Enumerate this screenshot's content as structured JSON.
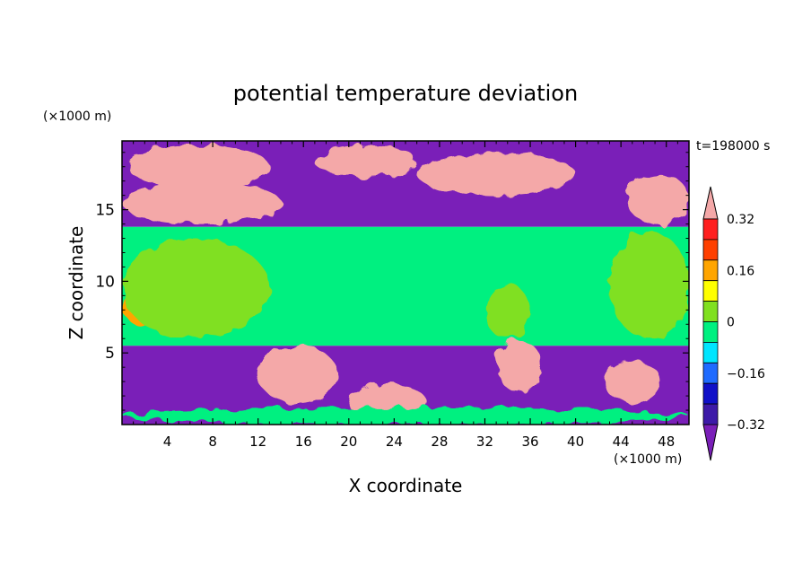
{
  "chart_data": {
    "type": "heatmap",
    "title": "potential temperature deviation",
    "xlabel": "X coordinate",
    "ylabel": "Z coordinate",
    "x_unit": "(×1000 m)",
    "y_unit": "(×1000 m)",
    "time_label": "t=198000 s",
    "xlim": [
      0,
      50
    ],
    "ylim": [
      0,
      19.8
    ],
    "x_ticks": [
      4,
      8,
      12,
      16,
      20,
      24,
      28,
      32,
      36,
      40,
      44,
      48
    ],
    "y_ticks": [
      5,
      10,
      15
    ],
    "colorbar": {
      "labels": [
        "0.32",
        "0.16",
        "0",
        "−0.16",
        "−0.32"
      ],
      "label_values": [
        0.32,
        0.16,
        0,
        -0.16,
        -0.32
      ],
      "levels": [
        -0.4,
        -0.32,
        -0.24,
        -0.16,
        -0.08,
        0,
        0.08,
        0.16,
        0.24,
        0.32,
        0.4
      ],
      "colors": [
        "#7a1fb8",
        "#3d1aa8",
        "#1010c8",
        "#1f6bff",
        "#00e5ff",
        "#00f080",
        "#80e020",
        "#ffff00",
        "#ffa500",
        "#ff4000",
        "#ff1f1f",
        "#f4a8a8"
      ]
    },
    "bands": [
      {
        "z": [
          13.8,
          19.8
        ],
        "value": -0.45,
        "color": "#7a1fb8"
      },
      {
        "z": [
          5.5,
          13.8
        ],
        "value": -0.04,
        "color": "#00f080"
      },
      {
        "z": [
          0,
          5.5
        ],
        "value": -0.45,
        "color": "#7a1fb8"
      }
    ],
    "features": [
      {
        "x": [
          0.5,
          13
        ],
        "z": [
          16.5,
          19.5
        ],
        "value": 0.45
      },
      {
        "x": [
          0,
          14
        ],
        "z": [
          14.0,
          17.0
        ],
        "value": 0.45
      },
      {
        "x": [
          17,
          26
        ],
        "z": [
          17.2,
          19.5
        ],
        "value": 0.45
      },
      {
        "x": [
          26,
          40
        ],
        "z": [
          16.0,
          19.0
        ],
        "value": 0.45
      },
      {
        "x": [
          44.5,
          50
        ],
        "z": [
          14.0,
          17.5
        ],
        "value": 0.45
      },
      {
        "x": [
          0,
          3
        ],
        "z": [
          7,
          10
        ],
        "value": 0.16
      },
      {
        "x": [
          0,
          13
        ],
        "z": [
          6,
          13
        ],
        "value": 0.04
      },
      {
        "x": [
          32,
          36
        ],
        "z": [
          6,
          9.8
        ],
        "value": 0.04
      },
      {
        "x": [
          43,
          50
        ],
        "z": [
          6,
          13.5
        ],
        "value": 0.04
      },
      {
        "x": [
          12,
          19
        ],
        "z": [
          1.5,
          5.5
        ],
        "value": 0.45
      },
      {
        "x": [
          33,
          37
        ],
        "z": [
          2.3,
          5.9
        ],
        "value": 0.45
      },
      {
        "x": [
          42.5,
          47.5
        ],
        "z": [
          1.5,
          4.5
        ],
        "value": 0.45
      },
      {
        "x": [
          20,
          27
        ],
        "z": [
          0,
          2.8
        ],
        "value": 0.45
      },
      {
        "x": [
          0,
          50
        ],
        "z": [
          0,
          1.2
        ],
        "value": -0.06
      }
    ]
  }
}
